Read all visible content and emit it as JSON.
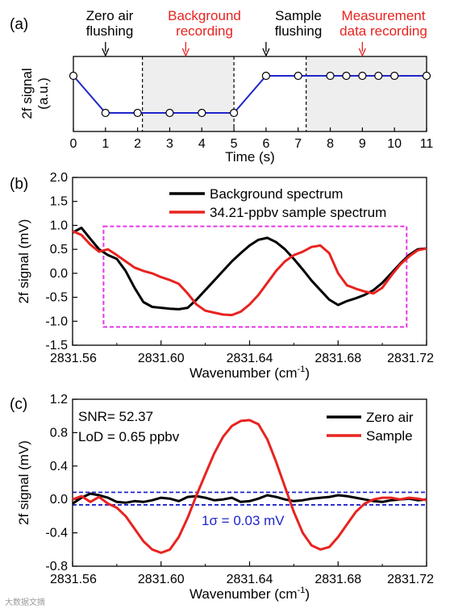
{
  "chart_data": [
    {
      "panel": "(a)",
      "type": "line",
      "xlabel": "Time (s)",
      "ylabel": "2f signal (a.u.)",
      "xlim": [
        0,
        11
      ],
      "xticks": [
        "0",
        "1",
        "2",
        "3",
        "4",
        "5",
        "6",
        "7",
        "8",
        "9",
        "10",
        "11"
      ],
      "annotations": [
        {
          "text": "Zero air flushing",
          "x": 1.0,
          "color": "#000000"
        },
        {
          "text": "Background recording",
          "x": 3.5,
          "color": "#e8231f"
        },
        {
          "text": "Sample flushing",
          "x": 6.0,
          "color": "#000000"
        },
        {
          "text": "Measurement data recording",
          "x": 9.0,
          "color": "#e8231f"
        }
      ],
      "shaded_regions": [
        [
          2.15,
          5.0
        ],
        [
          7.25,
          11.0
        ]
      ],
      "series": [
        {
          "color": "#1f25c9",
          "x": [
            0,
            1,
            2,
            3,
            4,
            5,
            6,
            7,
            8,
            8.5,
            9,
            9.5,
            10,
            10.5,
            11
          ],
          "y": [
            1,
            0,
            0,
            0,
            0,
            0,
            1,
            1,
            1,
            1,
            1,
            1,
            1,
            1,
            1
          ],
          "markers": [
            0,
            1,
            2,
            3,
            4,
            5,
            6,
            7,
            8,
            8.5,
            9,
            9.5,
            10,
            11
          ]
        }
      ]
    },
    {
      "panel": "(b)",
      "type": "line",
      "xlabel": "Wavenumber (cm",
      "xlabel_sup": "-1",
      "xlabel_end": ")",
      "ylabel": "2f signal (mV)",
      "xlim": [
        2831.56,
        2831.72
      ],
      "ylim": [
        -1.5,
        2.0
      ],
      "xticks": [
        "2831.56",
        "2831.60",
        "2831.64",
        "2831.68",
        "2831.72"
      ],
      "yticks": [
        "2.0",
        "1.5",
        "1.0",
        "0.5",
        "0.0",
        "-0.5",
        "-1.0",
        "-1.5"
      ],
      "highlight_box": {
        "x": [
          2831.574,
          2831.711
        ],
        "y": [
          -1.12,
          0.98
        ],
        "color": "#e536e5"
      },
      "series": [
        {
          "name": "Background spectrum",
          "color": "#000000",
          "x": [
            2831.56,
            2831.564,
            2831.568,
            2831.572,
            2831.576,
            2831.58,
            2831.584,
            2831.588,
            2831.592,
            2831.596,
            2831.6,
            2831.604,
            2831.608,
            2831.612,
            2831.616,
            2831.62,
            2831.624,
            2831.628,
            2831.632,
            2831.636,
            2831.64,
            2831.644,
            2831.648,
            2831.652,
            2831.656,
            2831.66,
            2831.664,
            2831.668,
            2831.672,
            2831.676,
            2831.68,
            2831.684,
            2831.688,
            2831.692,
            2831.696,
            2831.7,
            2831.704,
            2831.708,
            2831.712,
            2831.716,
            2831.72
          ],
          "y": [
            0.85,
            0.95,
            0.72,
            0.5,
            0.38,
            0.3,
            0.05,
            -0.3,
            -0.6,
            -0.7,
            -0.72,
            -0.74,
            -0.75,
            -0.72,
            -0.55,
            -0.35,
            -0.15,
            0.05,
            0.25,
            0.42,
            0.58,
            0.7,
            0.74,
            0.65,
            0.5,
            0.3,
            0.08,
            -0.15,
            -0.35,
            -0.55,
            -0.66,
            -0.58,
            -0.52,
            -0.45,
            -0.35,
            -0.2,
            0.0,
            0.2,
            0.38,
            0.5,
            0.52
          ]
        },
        {
          "name": "34.21-ppbv sample spectrum",
          "color": "#e8231f",
          "x": [
            2831.56,
            2831.564,
            2831.568,
            2831.572,
            2831.576,
            2831.58,
            2831.584,
            2831.588,
            2831.592,
            2831.596,
            2831.6,
            2831.604,
            2831.608,
            2831.612,
            2831.616,
            2831.62,
            2831.624,
            2831.628,
            2831.632,
            2831.636,
            2831.64,
            2831.644,
            2831.648,
            2831.652,
            2831.656,
            2831.66,
            2831.664,
            2831.668,
            2831.672,
            2831.676,
            2831.68,
            2831.684,
            2831.688,
            2831.692,
            2831.696,
            2831.7,
            2831.704,
            2831.708,
            2831.712,
            2831.716,
            2831.72
          ],
          "y": [
            0.88,
            0.8,
            0.6,
            0.45,
            0.5,
            0.38,
            0.25,
            0.12,
            0.05,
            0.0,
            -0.08,
            -0.14,
            -0.22,
            -0.42,
            -0.65,
            -0.78,
            -0.82,
            -0.86,
            -0.87,
            -0.8,
            -0.65,
            -0.45,
            -0.2,
            0.05,
            0.25,
            0.38,
            0.45,
            0.55,
            0.58,
            0.42,
            0.0,
            -0.25,
            -0.32,
            -0.38,
            -0.42,
            -0.3,
            -0.05,
            0.18,
            0.35,
            0.48,
            0.52
          ]
        }
      ],
      "legend": "top-right"
    },
    {
      "panel": "(c)",
      "type": "line",
      "xlabel": "Wavenumber (cm",
      "xlabel_sup": "-1",
      "xlabel_end": ")",
      "ylabel": "2f signal (mV)",
      "xlim": [
        2831.56,
        2831.72
      ],
      "ylim": [
        -0.8,
        1.2
      ],
      "xticks": [
        "2831.56",
        "2831.60",
        "2831.64",
        "2831.68",
        "2831.72"
      ],
      "yticks": [
        "1.2",
        "0.8",
        "0.4",
        "0.0",
        "-0.4",
        "-0.8"
      ],
      "stats": {
        "snr": "SNR= 52.37",
        "lod": "LoD = 0.65 ppbv",
        "sigma": "1σ = 0.03 mV"
      },
      "threshold_lines": [
        0.085,
        -0.065
      ],
      "series": [
        {
          "name": "Zero air",
          "color": "#000000",
          "x": [
            2831.56,
            2831.564,
            2831.568,
            2831.572,
            2831.576,
            2831.58,
            2831.584,
            2831.588,
            2831.592,
            2831.596,
            2831.6,
            2831.604,
            2831.608,
            2831.612,
            2831.616,
            2831.62,
            2831.624,
            2831.628,
            2831.632,
            2831.636,
            2831.64,
            2831.644,
            2831.648,
            2831.652,
            2831.656,
            2831.66,
            2831.664,
            2831.668,
            2831.672,
            2831.676,
            2831.68,
            2831.684,
            2831.688,
            2831.692,
            2831.696,
            2831.7,
            2831.704,
            2831.708,
            2831.712,
            2831.716,
            2831.72
          ],
          "y": [
            -0.05,
            0.02,
            0.07,
            0.05,
            0.02,
            -0.03,
            -0.04,
            -0.02,
            -0.03,
            -0.01,
            0.02,
            0.01,
            -0.02,
            0.03,
            0.04,
            0.02,
            -0.01,
            0.0,
            0.02,
            -0.03,
            -0.02,
            0.01,
            0.05,
            0.03,
            0.0,
            -0.02,
            -0.01,
            0.01,
            0.02,
            0.03,
            0.05,
            0.04,
            0.02,
            0.0,
            -0.02,
            -0.03,
            -0.01,
            0.0,
            0.01,
            -0.01,
            0.0
          ]
        },
        {
          "name": "Sample",
          "color": "#e8231f",
          "x": [
            2831.56,
            2831.564,
            2831.568,
            2831.572,
            2831.576,
            2831.58,
            2831.584,
            2831.588,
            2831.592,
            2831.596,
            2831.6,
            2831.604,
            2831.608,
            2831.612,
            2831.616,
            2831.62,
            2831.624,
            2831.628,
            2831.632,
            2831.636,
            2831.64,
            2831.644,
            2831.648,
            2831.652,
            2831.656,
            2831.66,
            2831.664,
            2831.668,
            2831.672,
            2831.676,
            2831.68,
            2831.684,
            2831.688,
            2831.692,
            2831.696,
            2831.7,
            2831.704,
            2831.708,
            2831.712,
            2831.716,
            2831.72
          ],
          "y": [
            0.0,
            0.04,
            -0.03,
            0.03,
            -0.05,
            -0.1,
            -0.2,
            -0.35,
            -0.5,
            -0.6,
            -0.64,
            -0.6,
            -0.45,
            -0.22,
            0.05,
            0.3,
            0.55,
            0.75,
            0.88,
            0.94,
            0.95,
            0.9,
            0.72,
            0.45,
            0.15,
            -0.15,
            -0.4,
            -0.55,
            -0.6,
            -0.57,
            -0.45,
            -0.3,
            -0.15,
            -0.05,
            0.0,
            0.02,
            0.02,
            0.0,
            0.02,
            0.01,
            -0.01
          ]
        }
      ],
      "legend": "top-right"
    }
  ],
  "watermark": "大数据文摘"
}
